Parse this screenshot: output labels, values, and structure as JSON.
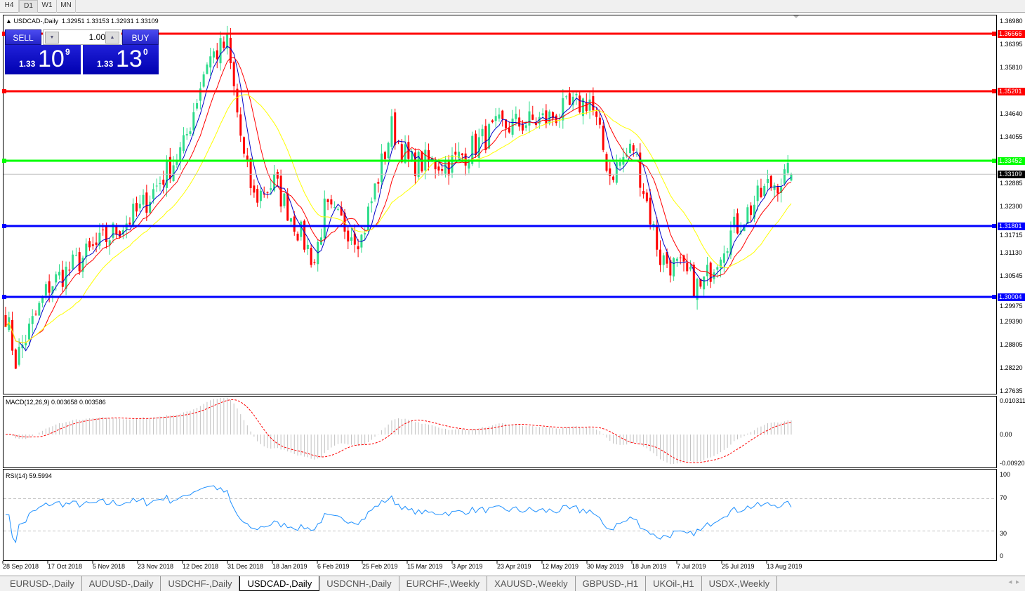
{
  "timeframes": [
    {
      "label": "H4",
      "selected": false
    },
    {
      "label": "D1",
      "selected": true
    },
    {
      "label": "W1",
      "selected": false
    },
    {
      "label": "MN",
      "selected": false
    }
  ],
  "chart_header": {
    "symbol": "USDCAD-,Daily",
    "ohlc": "1.32951 1.33153 1.32931 1.33109"
  },
  "trade_panel": {
    "sell_label": "SELL",
    "buy_label": "BUY",
    "lot": "1.00",
    "sell_price": {
      "prefix": "1.33",
      "big": "10",
      "small": "9"
    },
    "buy_price": {
      "prefix": "1.33",
      "big": "13",
      "small": "0"
    }
  },
  "colors": {
    "up_candle": "#2fdc8c",
    "down_candle": "#ff0000",
    "ma_fast": "#0000c8",
    "ma_mid": "#ff0000",
    "ma_slow": "#ffff00",
    "macd_hist": "#c0c0c0",
    "macd_signal": "#ff0000",
    "rsi": "#1e90ff"
  },
  "price_axis": [
    "1.36980",
    "1.36395",
    "1.35810",
    "1.34640",
    "1.34055",
    "1.32885",
    "1.32300",
    "1.31715",
    "1.31130",
    "1.30545",
    "1.29975",
    "1.29390",
    "1.28805",
    "1.28220",
    "1.27635"
  ],
  "price_range": [
    1.27635,
    1.3698
  ],
  "levels": [
    {
      "price": "1.36666",
      "color": "#ff0000"
    },
    {
      "price": "1.35201",
      "color": "#ff0000"
    },
    {
      "price": "1.33452",
      "color": "#00ff00"
    },
    {
      "price": "1.31801",
      "color": "#0000ff"
    },
    {
      "price": "1.30004",
      "color": "#0000ff"
    }
  ],
  "current_price": "1.33109",
  "chart_data": {
    "type": "candlestick",
    "x_ticks": [
      "28 Sep 2018",
      "17 Oct 2018",
      "5 Nov 2018",
      "23 Nov 2018",
      "12 Dec 2018",
      "31 Dec 2018",
      "18 Jan 2019",
      "6 Feb 2019",
      "25 Feb 2019",
      "15 Mar 2019",
      "3 Apr 2019",
      "23 Apr 2019",
      "12 May 2019",
      "30 May 2019",
      "18 Jun 2019",
      "7 Jul 2019",
      "25 Jul 2019",
      "13 Aug 2019"
    ],
    "approx_closes": [
      [
        "28 Sep 2018",
        1.296
      ],
      [
        "3 Oct 2018",
        1.284
      ],
      [
        "17 Oct 2018",
        1.303
      ],
      [
        "5 Nov 2018",
        1.312
      ],
      [
        "23 Nov 2018",
        1.322
      ],
      [
        "12 Dec 2018",
        1.338
      ],
      [
        "21 Dec 2018",
        1.36
      ],
      [
        "31 Dec 2018",
        1.364
      ],
      [
        "7 Jan 2019",
        1.335
      ],
      [
        "10 Jan 2019",
        1.325
      ],
      [
        "18 Jan 2019",
        1.329
      ],
      [
        "5 Feb 2019",
        1.309
      ],
      [
        "8 Feb 2019",
        1.322
      ],
      [
        "25 Feb 2019",
        1.315
      ],
      [
        "8 Mar 2019",
        1.343
      ],
      [
        "15 Mar 2019",
        1.334
      ],
      [
        "3 Apr 2019",
        1.334
      ],
      [
        "23 Apr 2019",
        1.343
      ],
      [
        "12 May 2019",
        1.345
      ],
      [
        "30 May 2019",
        1.35
      ],
      [
        "7 Jun 2019",
        1.331
      ],
      [
        "18 Jun 2019",
        1.338
      ],
      [
        "28 Jun 2019",
        1.31
      ],
      [
        "7 Jul 2019",
        1.307
      ],
      [
        "16 Jul 2019",
        1.302
      ],
      [
        "25 Jul 2019",
        1.314
      ],
      [
        "13 Aug 2019",
        1.328
      ],
      [
        "22 Aug 2019",
        1.33109
      ]
    ],
    "last_bar": {
      "open": 1.32951,
      "high": 1.33153,
      "low": 1.32931,
      "close": 1.33109
    }
  },
  "macd": {
    "label": "MACD(12,26,9) 0.003658 0.003586",
    "axis": [
      "0.010311",
      "0.00",
      "-0.009202"
    ],
    "range": [
      -0.009202,
      0.010311
    ]
  },
  "rsi": {
    "label": "RSI(14) 59.5994",
    "axis": [
      "100",
      "70",
      "30",
      "0"
    ]
  },
  "tabs": [
    {
      "label": "EURUSD-,Daily"
    },
    {
      "label": "AUDUSD-,Daily"
    },
    {
      "label": "USDCHF-,Daily"
    },
    {
      "label": "USDCAD-,Daily",
      "selected": true
    },
    {
      "label": "USDCNH-,Daily"
    },
    {
      "label": "EURCHF-,Weekly"
    },
    {
      "label": "XAUUSD-,Weekly"
    },
    {
      "label": "GBPUSD-,H1"
    },
    {
      "label": "UKOil-,H1"
    },
    {
      "label": "USDX-,Weekly"
    }
  ]
}
